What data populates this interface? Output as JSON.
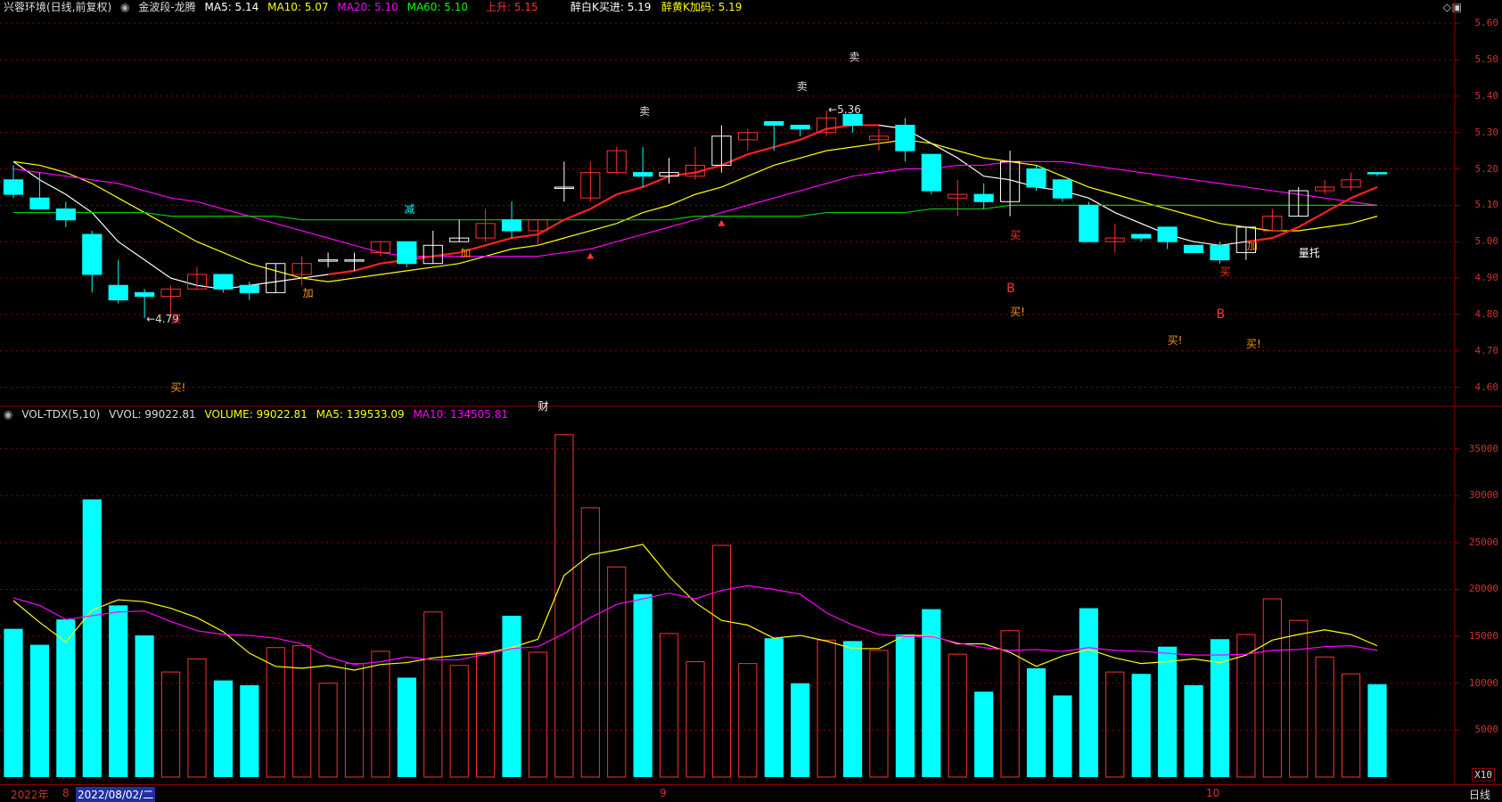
{
  "price_header": {
    "stock_name": "兴蓉环境(日线,前复权)",
    "indicator": "金波段-龙腾",
    "ma5": "MA5: 5.14",
    "ma10": "MA10: 5.07",
    "ma20": "MA20: 5.10",
    "ma60": "MA60: 5.10",
    "rise": "上升: 5.15",
    "buy": "醉白K买进: 5.19",
    "add": "醉黄K加码: 5.19"
  },
  "volume_header": {
    "indicator": "VOL-TDX(5,10)",
    "vvol": "VVOL: 99022.81",
    "volume": "VOLUME: 99022.81",
    "ma5": "MA5: 139533.09",
    "ma10": "MA10: 134505.81"
  },
  "price_axis": [
    "5.60",
    "5.50",
    "5.40",
    "5.30",
    "5.20",
    "5.10",
    "5.00",
    "4.90",
    "4.80",
    "4.70",
    "4.60"
  ],
  "volume_axis": [
    "35000",
    "30000",
    "25000",
    "20000",
    "15000",
    "10000",
    "5000"
  ],
  "volume_unit": "X10",
  "x_axis": {
    "year": "2022年",
    "month8": "8",
    "cursor_date": "2022/08/02/二",
    "month9": "9",
    "month10": "10",
    "period": "日线"
  },
  "colors": {
    "up": "#ff3030",
    "down": "#00ffff",
    "ma5": "#ffffff",
    "ma10": "#ffff00",
    "ma20": "#ff00ff",
    "ma60": "#00cc00",
    "grid": "#8b0000"
  },
  "annotations": {
    "low": "←4.79",
    "high": "←5.36",
    "sell": "卖",
    "buy": "买",
    "buy_excl": "买!",
    "add": "加",
    "reduce": "减",
    "b": "B",
    "volume_support": "量托",
    "finance": "财"
  },
  "chart_data": {
    "type": "candlestick",
    "price_ylim": [
      4.55,
      5.62
    ],
    "volume_ylim": [
      0,
      38000
    ],
    "candles": [
      {
        "o": 5.17,
        "h": 5.21,
        "l": 5.12,
        "c": 5.13,
        "dir": "down"
      },
      {
        "o": 5.12,
        "h": 5.19,
        "l": 5.09,
        "c": 5.09,
        "dir": "down"
      },
      {
        "o": 5.09,
        "h": 5.11,
        "l": 5.04,
        "c": 5.06,
        "dir": "down"
      },
      {
        "o": 5.02,
        "h": 5.03,
        "l": 4.86,
        "c": 4.91,
        "dir": "down"
      },
      {
        "o": 4.88,
        "h": 4.95,
        "l": 4.83,
        "c": 4.84,
        "dir": "down"
      },
      {
        "o": 4.86,
        "h": 4.87,
        "l": 4.79,
        "c": 4.85,
        "dir": "down"
      },
      {
        "o": 4.85,
        "h": 4.88,
        "l": 4.8,
        "c": 4.87,
        "dir": "up"
      },
      {
        "o": 4.87,
        "h": 4.93,
        "l": 4.87,
        "c": 4.91,
        "dir": "up"
      },
      {
        "o": 4.91,
        "h": 4.91,
        "l": 4.86,
        "c": 4.87,
        "dir": "down"
      },
      {
        "o": 4.88,
        "h": 4.89,
        "l": 4.84,
        "c": 4.86,
        "dir": "down"
      },
      {
        "o": 4.86,
        "h": 4.94,
        "l": 4.86,
        "c": 4.94,
        "dir": "doji"
      },
      {
        "o": 4.91,
        "h": 4.96,
        "l": 4.88,
        "c": 4.94,
        "dir": "up"
      },
      {
        "o": 4.95,
        "h": 4.97,
        "l": 4.93,
        "c": 4.95,
        "dir": "doji"
      },
      {
        "o": 4.95,
        "h": 4.97,
        "l": 4.92,
        "c": 4.95,
        "dir": "doji"
      },
      {
        "o": 4.97,
        "h": 5.0,
        "l": 4.96,
        "c": 5.0,
        "dir": "up"
      },
      {
        "o": 5.0,
        "h": 5.0,
        "l": 4.93,
        "c": 4.94,
        "dir": "down"
      },
      {
        "o": 4.94,
        "h": 5.03,
        "l": 4.94,
        "c": 4.99,
        "dir": "doji"
      },
      {
        "o": 5.0,
        "h": 5.06,
        "l": 5.0,
        "c": 5.01,
        "dir": "doji"
      },
      {
        "o": 5.01,
        "h": 5.09,
        "l": 5.0,
        "c": 5.05,
        "dir": "up"
      },
      {
        "o": 5.06,
        "h": 5.11,
        "l": 5.01,
        "c": 5.03,
        "dir": "down"
      },
      {
        "o": 5.03,
        "h": 5.06,
        "l": 4.99,
        "c": 5.06,
        "dir": "up"
      },
      {
        "o": 5.15,
        "h": 5.22,
        "l": 5.11,
        "c": 5.15,
        "dir": "doji"
      },
      {
        "o": 5.12,
        "h": 5.22,
        "l": 5.11,
        "c": 5.19,
        "dir": "up"
      },
      {
        "o": 5.19,
        "h": 5.26,
        "l": 5.19,
        "c": 5.25,
        "dir": "up"
      },
      {
        "o": 5.19,
        "h": 5.26,
        "l": 5.15,
        "c": 5.18,
        "dir": "down"
      },
      {
        "o": 5.18,
        "h": 5.23,
        "l": 5.16,
        "c": 5.19,
        "dir": "doji"
      },
      {
        "o": 5.18,
        "h": 5.26,
        "l": 5.17,
        "c": 5.21,
        "dir": "up"
      },
      {
        "o": 5.21,
        "h": 5.32,
        "l": 5.19,
        "c": 5.29,
        "dir": "doji"
      },
      {
        "o": 5.28,
        "h": 5.31,
        "l": 5.25,
        "c": 5.3,
        "dir": "up"
      },
      {
        "o": 5.33,
        "h": 5.33,
        "l": 5.25,
        "c": 5.32,
        "dir": "down"
      },
      {
        "o": 5.32,
        "h": 5.32,
        "l": 5.29,
        "c": 5.31,
        "dir": "down"
      },
      {
        "o": 5.3,
        "h": 5.36,
        "l": 5.29,
        "c": 5.34,
        "dir": "up"
      },
      {
        "o": 5.35,
        "h": 5.35,
        "l": 5.3,
        "c": 5.32,
        "dir": "down"
      },
      {
        "o": 5.29,
        "h": 5.31,
        "l": 5.25,
        "c": 5.28,
        "dir": "up"
      },
      {
        "o": 5.32,
        "h": 5.34,
        "l": 5.22,
        "c": 5.25,
        "dir": "down"
      },
      {
        "o": 5.24,
        "h": 5.24,
        "l": 5.13,
        "c": 5.14,
        "dir": "down"
      },
      {
        "o": 5.13,
        "h": 5.17,
        "l": 5.07,
        "c": 5.12,
        "dir": "up"
      },
      {
        "o": 5.13,
        "h": 5.16,
        "l": 5.09,
        "c": 5.11,
        "dir": "down"
      },
      {
        "o": 5.11,
        "h": 5.25,
        "l": 5.07,
        "c": 5.22,
        "dir": "doji"
      },
      {
        "o": 5.2,
        "h": 5.21,
        "l": 5.14,
        "c": 5.15,
        "dir": "down"
      },
      {
        "o": 5.17,
        "h": 5.17,
        "l": 5.11,
        "c": 5.12,
        "dir": "down"
      },
      {
        "o": 5.1,
        "h": 5.11,
        "l": 5.0,
        "c": 5.0,
        "dir": "down"
      },
      {
        "o": 5.0,
        "h": 5.05,
        "l": 4.97,
        "c": 5.01,
        "dir": "up"
      },
      {
        "o": 5.02,
        "h": 5.02,
        "l": 5.0,
        "c": 5.01,
        "dir": "down"
      },
      {
        "o": 5.04,
        "h": 5.04,
        "l": 4.98,
        "c": 5.0,
        "dir": "down"
      },
      {
        "o": 4.99,
        "h": 4.99,
        "l": 4.97,
        "c": 4.97,
        "dir": "down"
      },
      {
        "o": 4.99,
        "h": 5.0,
        "l": 4.94,
        "c": 4.95,
        "dir": "down"
      },
      {
        "o": 4.97,
        "h": 5.04,
        "l": 4.95,
        "c": 5.04,
        "dir": "doji"
      },
      {
        "o": 5.03,
        "h": 5.09,
        "l": 5.03,
        "c": 5.07,
        "dir": "up"
      },
      {
        "o": 5.07,
        "h": 5.15,
        "l": 5.07,
        "c": 5.14,
        "dir": "doji"
      },
      {
        "o": 5.14,
        "h": 5.17,
        "l": 5.13,
        "c": 5.15,
        "dir": "up"
      },
      {
        "o": 5.15,
        "h": 5.19,
        "l": 5.14,
        "c": 5.17,
        "dir": "up"
      },
      {
        "o": 5.19,
        "h": 5.19,
        "l": 5.18,
        "c": 5.19,
        "dir": "down"
      }
    ],
    "volume": [
      15800,
      14100,
      16800,
      29600,
      18300,
      15100,
      11200,
      12600,
      10300,
      9800,
      13800,
      14000,
      10000,
      12100,
      13400,
      10600,
      17600,
      11900,
      13300,
      17200,
      13300,
      36500,
      28700,
      22400,
      19500,
      15300,
      12300,
      24700,
      12100,
      14800,
      10000,
      14600,
      14500,
      13500,
      15200,
      17900,
      13100,
      9100,
      15600,
      11600,
      8700,
      18000,
      11200,
      11000,
      13900,
      9800,
      14700,
      15200,
      19000,
      16700,
      12800,
      11000,
      9900
    ],
    "series": [
      {
        "name": "MA5",
        "color": "ma5",
        "values": [
          5.22,
          5.17,
          5.13,
          5.08,
          5.0,
          4.95,
          4.9,
          4.88,
          4.87,
          4.88,
          4.89,
          4.9,
          4.91,
          4.92,
          4.94,
          4.95,
          4.96,
          4.97,
          4.99,
          5.01,
          5.02,
          5.06,
          5.09,
          5.13,
          5.15,
          5.18,
          5.19,
          5.21,
          5.24,
          5.26,
          5.28,
          5.31,
          5.32,
          5.32,
          5.31,
          5.27,
          5.23,
          5.18,
          5.17,
          5.15,
          5.14,
          5.12,
          5.08,
          5.05,
          5.02,
          5.0,
          4.99,
          5.0,
          5.01,
          5.04,
          5.08,
          5.12,
          5.15
        ]
      },
      {
        "name": "MA10",
        "color": "ma10",
        "values": [
          5.22,
          5.21,
          5.19,
          5.16,
          5.12,
          5.08,
          5.04,
          5.0,
          4.97,
          4.94,
          4.92,
          4.9,
          4.89,
          4.9,
          4.91,
          4.92,
          4.93,
          4.94,
          4.96,
          4.98,
          4.99,
          5.01,
          5.03,
          5.05,
          5.08,
          5.1,
          5.13,
          5.15,
          5.18,
          5.21,
          5.23,
          5.25,
          5.26,
          5.27,
          5.28,
          5.27,
          5.25,
          5.23,
          5.22,
          5.21,
          5.18,
          5.15,
          5.13,
          5.11,
          5.09,
          5.07,
          5.05,
          5.04,
          5.03,
          5.03,
          5.04,
          5.05,
          5.07
        ]
      },
      {
        "name": "MA20",
        "color": "ma20",
        "values": [
          5.2,
          5.19,
          5.18,
          5.17,
          5.16,
          5.14,
          5.12,
          5.11,
          5.09,
          5.07,
          5.05,
          5.03,
          5.01,
          4.99,
          4.97,
          4.96,
          4.96,
          4.96,
          4.96,
          4.96,
          4.96,
          4.97,
          4.98,
          5.0,
          5.02,
          5.04,
          5.06,
          5.08,
          5.1,
          5.12,
          5.14,
          5.16,
          5.18,
          5.19,
          5.2,
          5.2,
          5.21,
          5.21,
          5.22,
          5.22,
          5.22,
          5.21,
          5.2,
          5.19,
          5.18,
          5.17,
          5.16,
          5.15,
          5.14,
          5.13,
          5.12,
          5.11,
          5.1
        ]
      },
      {
        "name": "MA60",
        "color": "ma60",
        "values": [
          5.08,
          5.08,
          5.08,
          5.08,
          5.08,
          5.08,
          5.07,
          5.07,
          5.07,
          5.07,
          5.07,
          5.06,
          5.06,
          5.06,
          5.06,
          5.06,
          5.06,
          5.06,
          5.06,
          5.06,
          5.06,
          5.06,
          5.06,
          5.06,
          5.06,
          5.06,
          5.07,
          5.07,
          5.07,
          5.07,
          5.07,
          5.08,
          5.08,
          5.08,
          5.08,
          5.09,
          5.09,
          5.09,
          5.1,
          5.1,
          5.1,
          5.1,
          5.1,
          5.1,
          5.1,
          5.1,
          5.1,
          5.1,
          5.1,
          5.1,
          5.1,
          5.1,
          5.1
        ]
      },
      {
        "name": "VOL-MA5",
        "color": "ma10",
        "values": [
          18800,
          16500,
          14400,
          17800,
          18900,
          18700,
          18000,
          17000,
          15500,
          13200,
          11800,
          11600,
          11900,
          11400,
          12000,
          12200,
          12700,
          13000,
          13200,
          13800,
          14700,
          21500,
          23700,
          24200,
          24800,
          21400,
          18600,
          16700,
          16200,
          14800,
          15100,
          14500,
          13700,
          13700,
          15100,
          15100,
          14200,
          14200,
          13300,
          11800,
          12900,
          13600,
          12700,
          12100,
          12300,
          12600,
          12200,
          13000,
          14600,
          15200,
          15700,
          15200,
          14000
        ]
      },
      {
        "name": "VOL-MA10",
        "color": "ma20",
        "values": [
          19100,
          18300,
          16800,
          17200,
          17600,
          17700,
          16600,
          15600,
          15200,
          15100,
          14800,
          14200,
          12800,
          12000,
          12300,
          12800,
          12500,
          12500,
          13100,
          13700,
          13900,
          15300,
          17000,
          18400,
          19000,
          19600,
          19000,
          19900,
          20400,
          20000,
          19500,
          17500,
          16200,
          15200,
          15000,
          15000,
          14300,
          13800,
          13500,
          13600,
          13400,
          13800,
          13500,
          13400,
          13200,
          13000,
          13000,
          13100,
          13500,
          13600,
          13900,
          14000,
          13500
        ]
      }
    ]
  }
}
